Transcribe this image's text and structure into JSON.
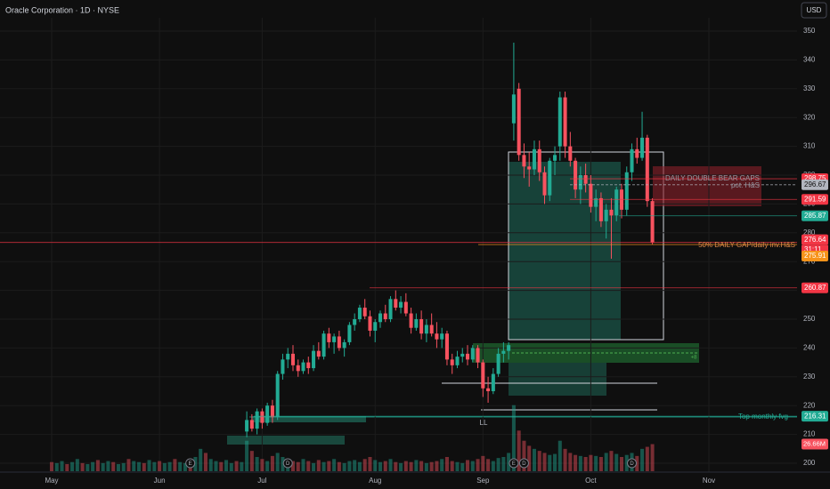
{
  "chart_data": {
    "type": "candlestick",
    "title": "Oracle Corporation · 1D · NYSE",
    "currency": "USD",
    "ylim": [
      200,
      350
    ],
    "yticks": [
      200,
      210,
      220,
      230,
      240,
      250,
      260,
      270,
      280,
      290,
      300,
      310,
      320,
      330,
      340,
      350
    ],
    "grid": true,
    "up_color": "#22ab94",
    "down_color": "#f7525f",
    "categories": [
      "May",
      null,
      null,
      null,
      null,
      null,
      null,
      null,
      null,
      null,
      null,
      null,
      null,
      null,
      null,
      null,
      null,
      null,
      null,
      null,
      null,
      "Jun",
      null,
      null,
      null,
      null,
      null,
      null,
      null,
      null,
      null,
      null,
      null,
      null,
      null,
      null,
      null,
      null,
      null,
      null,
      null,
      "Jul",
      null,
      null,
      null,
      null,
      null,
      null,
      null,
      null,
      null,
      null,
      null,
      null,
      null,
      null,
      null,
      null,
      null,
      null,
      null,
      null,
      null,
      "Aug",
      null,
      null,
      null,
      null,
      null,
      null,
      null,
      null,
      null,
      null,
      null,
      null,
      null,
      null,
      null,
      null,
      null,
      null,
      null,
      null,
      "Sep",
      null,
      null,
      null,
      null,
      null,
      null,
      null,
      null,
      null,
      null,
      null,
      null,
      null,
      null,
      null,
      null,
      null,
      null,
      null,
      null,
      "Oct",
      null,
      null,
      null,
      null,
      null,
      null,
      null,
      null,
      null,
      null,
      null,
      null,
      null,
      null,
      null,
      null,
      null,
      null,
      null,
      null,
      null,
      null,
      "Nov"
    ],
    "candles": {
      "values": [
        null,
        null,
        null,
        null,
        null,
        null,
        null,
        null,
        null,
        null,
        null,
        null,
        null,
        null,
        null,
        null,
        null,
        null,
        null,
        null,
        null,
        null,
        null,
        null,
        null,
        null,
        null,
        null,
        null,
        null,
        null,
        null,
        null,
        null,
        null,
        null,
        null,
        null,
        [
          211,
          218,
          209,
          215
        ],
        [
          215,
          217,
          211,
          212
        ],
        [
          212,
          219,
          210,
          218
        ],
        [
          218,
          219,
          212,
          214
        ],
        [
          214,
          221,
          213,
          220
        ],
        [
          220,
          222,
          214,
          216
        ],
        [
          216,
          232,
          215,
          231
        ],
        [
          231,
          238,
          229,
          236
        ],
        [
          236,
          240,
          233,
          238
        ],
        [
          238,
          241,
          232,
          234
        ],
        [
          234,
          236,
          230,
          232
        ],
        [
          232,
          236,
          231,
          235
        ],
        [
          235,
          237,
          231,
          233
        ],
        [
          233,
          241,
          232,
          239
        ],
        [
          239,
          242,
          236,
          237
        ],
        [
          237,
          246,
          236,
          245
        ],
        [
          245,
          247,
          240,
          242
        ],
        [
          242,
          245,
          238,
          244
        ],
        [
          244,
          246,
          239,
          240
        ],
        [
          240,
          243,
          237,
          242
        ],
        [
          242,
          249,
          241,
          248
        ],
        [
          248,
          252,
          246,
          250
        ],
        [
          250,
          255,
          249,
          254
        ],
        [
          254,
          257,
          250,
          251
        ],
        [
          251,
          253,
          244,
          246
        ],
        [
          246,
          250,
          242,
          249
        ],
        [
          249,
          253,
          247,
          252
        ],
        [
          252,
          255,
          249,
          250
        ],
        [
          250,
          258,
          249,
          257
        ],
        [
          257,
          260,
          253,
          254
        ],
        [
          254,
          258,
          252,
          256
        ],
        [
          256,
          259,
          251,
          252
        ],
        [
          252,
          254,
          245,
          247
        ],
        [
          247,
          252,
          246,
          250
        ],
        [
          250,
          253,
          243,
          245
        ],
        [
          245,
          250,
          242,
          248
        ],
        [
          248,
          252,
          244,
          245
        ],
        [
          245,
          249,
          240,
          243
        ],
        [
          243,
          247,
          240,
          245
        ],
        [
          245,
          246,
          234,
          236
        ],
        [
          236,
          238,
          231,
          234
        ],
        [
          234,
          239,
          233,
          237
        ],
        [
          237,
          240,
          235,
          238
        ],
        [
          238,
          241,
          234,
          236
        ],
        [
          236,
          241,
          235,
          240
        ],
        [
          240,
          241,
          233,
          235
        ],
        [
          235,
          236,
          223,
          226
        ],
        [
          226,
          230,
          221,
          225
        ],
        [
          225,
          233,
          224,
          231
        ],
        [
          231,
          240,
          230,
          238
        ],
        [
          238,
          242,
          235,
          239
        ],
        [
          239,
          242,
          236,
          241
        ],
        [
          318,
          346,
          312,
          328
        ],
        [
          330,
          332,
          305,
          307
        ],
        [
          307,
          311,
          299,
          303
        ],
        [
          303,
          308,
          296,
          302
        ],
        [
          302,
          312,
          300,
          309
        ],
        [
          309,
          312,
          298,
          301
        ],
        [
          301,
          303,
          290,
          293
        ],
        [
          293,
          306,
          291,
          305
        ],
        [
          305,
          310,
          300,
          307
        ],
        [
          310,
          329,
          305,
          327
        ],
        [
          327,
          329,
          306,
          310
        ],
        [
          310,
          315,
          303,
          305
        ],
        [
          305,
          306,
          292,
          295
        ],
        [
          295,
          303,
          290,
          300
        ],
        [
          300,
          304,
          294,
          297
        ],
        [
          297,
          300,
          287,
          289
        ],
        [
          289,
          295,
          284,
          292
        ],
        [
          292,
          294,
          282,
          284
        ],
        [
          284,
          290,
          278,
          288
        ],
        [
          288,
          292,
          271,
          286
        ],
        [
          286,
          296,
          284,
          295
        ],
        [
          295,
          297,
          285,
          288
        ],
        [
          288,
          303,
          286,
          301
        ],
        [
          301,
          311,
          298,
          309
        ],
        [
          309,
          313,
          304,
          306
        ],
        [
          306,
          322,
          305,
          313
        ],
        [
          313,
          314,
          289,
          291
        ],
        [
          291,
          292,
          276,
          276.64
        ],
        null,
        null,
        null,
        null,
        null,
        null,
        null,
        null,
        null,
        null,
        null
      ]
    },
    "volume": {
      "vlim": [
        0,
        70
      ],
      "values": [
        9,
        8,
        10,
        7,
        9,
        12,
        8,
        7,
        9,
        11,
        8,
        10,
        9,
        7,
        8,
        12,
        10,
        9,
        8,
        11,
        9,
        10,
        8,
        9,
        12,
        9,
        8,
        10,
        14,
        22,
        18,
        12,
        10,
        9,
        11,
        8,
        10,
        9,
        30,
        20,
        14,
        12,
        10,
        15,
        18,
        14,
        11,
        10,
        9,
        12,
        10,
        8,
        11,
        9,
        10,
        12,
        9,
        8,
        10,
        11,
        9,
        12,
        14,
        11,
        9,
        10,
        12,
        9,
        8,
        10,
        9,
        11,
        10,
        8,
        9,
        10,
        12,
        14,
        10,
        9,
        8,
        11,
        10,
        12,
        15,
        12,
        10,
        13,
        14,
        18,
        65,
        40,
        30,
        25,
        22,
        20,
        18,
        16,
        17,
        30,
        22,
        18,
        16,
        15,
        14,
        16,
        15,
        14,
        18,
        20,
        17,
        14,
        16,
        18,
        15,
        22,
        24,
        26.66,
        null,
        null,
        null,
        null,
        null,
        null,
        null,
        null,
        null,
        null,
        null
      ],
      "last_label": {
        "value": 26.66,
        "label": "26.66M"
      }
    },
    "levels": [
      {
        "value": 298.75,
        "color": "#f23645"
      },
      {
        "value": 296.67,
        "color": "#b2b5be"
      },
      {
        "value": 291.59,
        "color": "#f23645"
      },
      {
        "value": 285.87,
        "color": "#22ab94"
      },
      {
        "value": 276.64,
        "color": "#f23645"
      },
      {
        "value": 275.91,
        "color": "#f7931a"
      },
      {
        "value": 260.87,
        "color": "#f23645"
      },
      {
        "value": 216.31,
        "color": "#22ab94"
      }
    ],
    "countdown": "31:11",
    "annotations": [
      "DAILY DOUBLE BEAR GAPS",
      "pot. H&S",
      "50% DAILY GAP/daily inv.H&S",
      "Top monthly fvg",
      "LL",
      "+8"
    ],
    "event_markers": [
      "E",
      "D",
      "D",
      "E",
      "D"
    ]
  }
}
